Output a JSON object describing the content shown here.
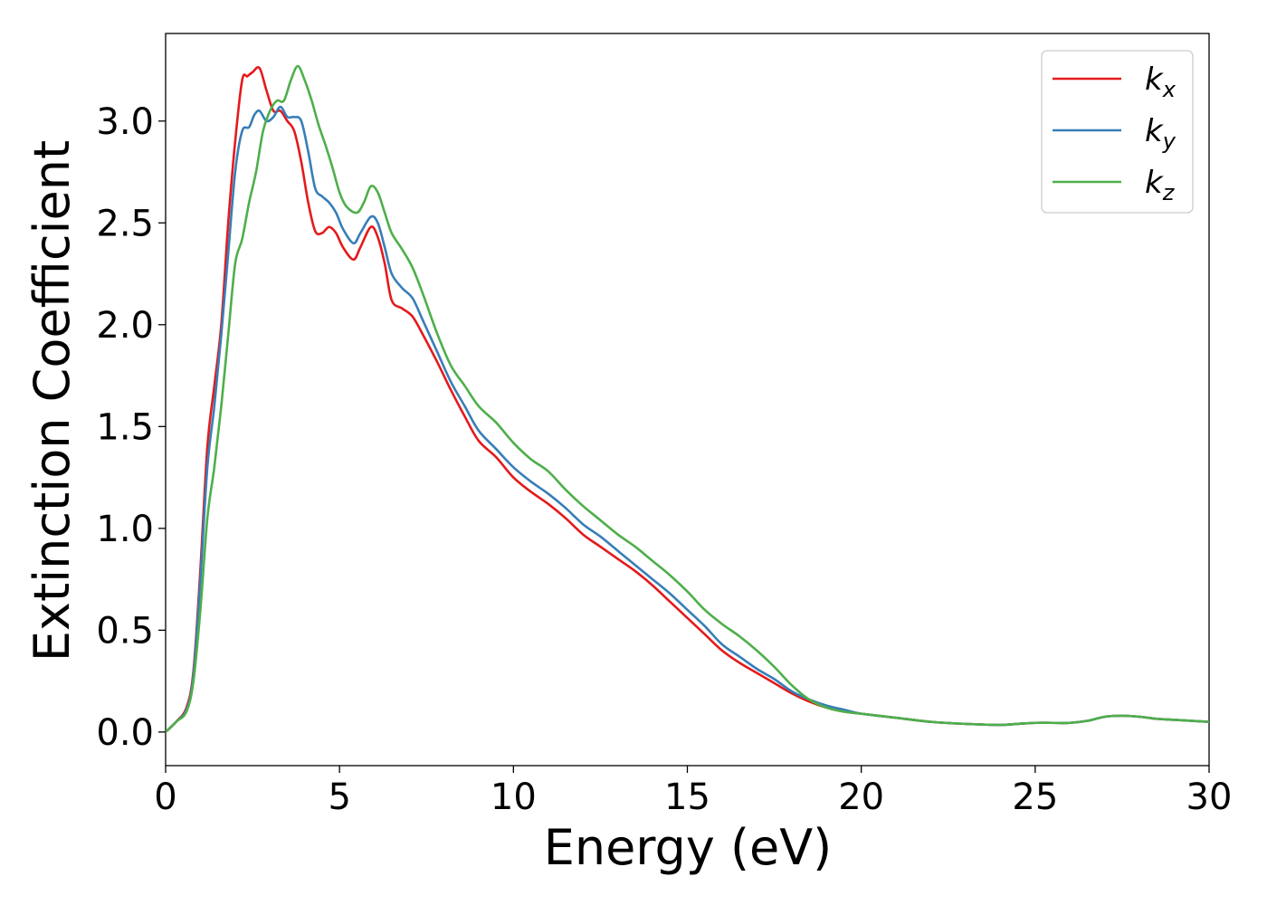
{
  "chart_data": {
    "type": "line",
    "xlabel": "Energy (eV)",
    "ylabel": "Extinction Coefficient",
    "xlim": [
      0,
      30
    ],
    "ylim": [
      -0.165,
      3.43
    ],
    "xticks": [
      0,
      5,
      10,
      15,
      20,
      25,
      30
    ],
    "xtick_labels": [
      "0",
      "5",
      "10",
      "15",
      "20",
      "25",
      "30"
    ],
    "yticks": [
      0.0,
      0.5,
      1.0,
      1.5,
      2.0,
      2.5,
      3.0
    ],
    "ytick_labels": [
      "0.0",
      "0.5",
      "1.0",
      "1.5",
      "2.0",
      "2.5",
      "3.0"
    ],
    "grid": false,
    "legend_position": "top-right",
    "series": [
      {
        "name": "k_x",
        "label_base": "k",
        "label_sub": "x",
        "color": "#e41a1c",
        "x": [
          0,
          0.3,
          0.6,
          0.8,
          1.0,
          1.2,
          1.4,
          1.6,
          1.8,
          2.0,
          2.2,
          2.35,
          2.5,
          2.7,
          2.9,
          3.1,
          3.3,
          3.5,
          3.7,
          3.9,
          4.1,
          4.3,
          4.5,
          4.7,
          4.9,
          5.1,
          5.4,
          5.6,
          5.9,
          6.1,
          6.3,
          6.5,
          6.8,
          7.1,
          7.4,
          7.8,
          8.2,
          8.6,
          9.0,
          9.5,
          10.0,
          10.5,
          11.0,
          11.5,
          12.0,
          12.5,
          13.0,
          13.5,
          14.0,
          14.5,
          15.0,
          15.5,
          16.0,
          16.5,
          17.0,
          17.5,
          18.0,
          18.5,
          19.0,
          19.5,
          20.0,
          21.0,
          22.0,
          23.0,
          24.0,
          24.5,
          25.0,
          25.5,
          26.0,
          26.5,
          27.0,
          27.5,
          28.0,
          28.5,
          29.0,
          29.5,
          30.0
        ],
        "y": [
          0.0,
          0.05,
          0.12,
          0.3,
          0.8,
          1.4,
          1.7,
          2.0,
          2.5,
          2.9,
          3.2,
          3.22,
          3.24,
          3.26,
          3.15,
          3.05,
          3.05,
          3.0,
          2.95,
          2.8,
          2.6,
          2.46,
          2.45,
          2.48,
          2.45,
          2.38,
          2.32,
          2.38,
          2.48,
          2.43,
          2.3,
          2.12,
          2.08,
          2.04,
          1.95,
          1.82,
          1.68,
          1.55,
          1.43,
          1.35,
          1.25,
          1.18,
          1.12,
          1.05,
          0.97,
          0.91,
          0.85,
          0.79,
          0.72,
          0.64,
          0.56,
          0.48,
          0.4,
          0.34,
          0.29,
          0.24,
          0.19,
          0.15,
          0.12,
          0.1,
          0.09,
          0.07,
          0.05,
          0.04,
          0.035,
          0.04,
          0.045,
          0.045,
          0.045,
          0.055,
          0.075,
          0.08,
          0.075,
          0.065,
          0.06,
          0.055,
          0.05
        ]
      },
      {
        "name": "k_y",
        "label_base": "k",
        "label_sub": "y",
        "color": "#377eb8",
        "x": [
          0,
          0.3,
          0.6,
          0.8,
          1.0,
          1.2,
          1.4,
          1.6,
          1.8,
          2.0,
          2.2,
          2.4,
          2.55,
          2.7,
          2.9,
          3.1,
          3.3,
          3.5,
          3.7,
          3.9,
          4.1,
          4.3,
          4.5,
          4.7,
          4.9,
          5.1,
          5.4,
          5.6,
          5.9,
          6.1,
          6.3,
          6.5,
          6.8,
          7.1,
          7.4,
          7.8,
          8.2,
          8.6,
          9.0,
          9.5,
          10.0,
          10.5,
          11.0,
          11.5,
          12.0,
          12.5,
          13.0,
          13.5,
          14.0,
          14.5,
          15.0,
          15.5,
          16.0,
          16.5,
          17.0,
          17.5,
          18.0,
          18.5,
          19.0,
          19.5,
          20.0,
          21.0,
          22.0,
          23.0,
          24.0,
          24.5,
          25.0,
          25.5,
          26.0,
          26.5,
          27.0,
          27.5,
          28.0,
          28.5,
          29.0,
          29.5,
          30.0
        ],
        "y": [
          0.0,
          0.05,
          0.11,
          0.28,
          0.75,
          1.3,
          1.6,
          1.95,
          2.35,
          2.75,
          2.95,
          2.97,
          3.03,
          3.05,
          3.0,
          3.02,
          3.07,
          3.02,
          3.02,
          3.0,
          2.85,
          2.67,
          2.63,
          2.6,
          2.55,
          2.47,
          2.4,
          2.45,
          2.53,
          2.5,
          2.38,
          2.25,
          2.18,
          2.13,
          2.02,
          1.87,
          1.72,
          1.6,
          1.48,
          1.39,
          1.3,
          1.23,
          1.17,
          1.1,
          1.02,
          0.96,
          0.89,
          0.82,
          0.75,
          0.68,
          0.6,
          0.52,
          0.43,
          0.37,
          0.31,
          0.26,
          0.2,
          0.16,
          0.13,
          0.11,
          0.09,
          0.07,
          0.05,
          0.04,
          0.035,
          0.04,
          0.045,
          0.045,
          0.045,
          0.055,
          0.075,
          0.08,
          0.075,
          0.065,
          0.06,
          0.055,
          0.05
        ]
      },
      {
        "name": "k_z",
        "label_base": "k",
        "label_sub": "z",
        "color": "#4daf4a",
        "x": [
          0,
          0.3,
          0.6,
          0.8,
          1.0,
          1.2,
          1.4,
          1.6,
          1.8,
          2.0,
          2.2,
          2.4,
          2.6,
          2.8,
          3.0,
          3.2,
          3.4,
          3.6,
          3.8,
          4.0,
          4.2,
          4.4,
          4.6,
          4.8,
          5.0,
          5.2,
          5.5,
          5.7,
          5.9,
          6.1,
          6.3,
          6.5,
          6.8,
          7.1,
          7.4,
          7.8,
          8.2,
          8.6,
          9.0,
          9.5,
          10.0,
          10.5,
          11.0,
          11.5,
          12.0,
          12.5,
          13.0,
          13.5,
          14.0,
          14.5,
          15.0,
          15.5,
          16.0,
          16.5,
          17.0,
          17.5,
          18.0,
          18.5,
          19.0,
          19.5,
          20.0,
          21.0,
          22.0,
          23.0,
          24.0,
          24.5,
          25.0,
          25.5,
          26.0,
          26.5,
          27.0,
          27.5,
          28.0,
          28.5,
          29.0,
          29.5,
          30.0
        ],
        "y": [
          0.0,
          0.05,
          0.1,
          0.25,
          0.6,
          1.05,
          1.3,
          1.6,
          1.95,
          2.3,
          2.42,
          2.6,
          2.75,
          2.95,
          3.05,
          3.1,
          3.1,
          3.2,
          3.27,
          3.2,
          3.1,
          2.98,
          2.88,
          2.77,
          2.65,
          2.58,
          2.55,
          2.6,
          2.68,
          2.65,
          2.55,
          2.45,
          2.37,
          2.28,
          2.15,
          1.96,
          1.8,
          1.7,
          1.6,
          1.52,
          1.42,
          1.34,
          1.28,
          1.19,
          1.11,
          1.04,
          0.97,
          0.91,
          0.84,
          0.77,
          0.69,
          0.6,
          0.53,
          0.47,
          0.4,
          0.32,
          0.23,
          0.16,
          0.12,
          0.1,
          0.09,
          0.07,
          0.05,
          0.04,
          0.035,
          0.04,
          0.045,
          0.045,
          0.045,
          0.055,
          0.075,
          0.08,
          0.075,
          0.065,
          0.06,
          0.055,
          0.05
        ]
      }
    ]
  }
}
